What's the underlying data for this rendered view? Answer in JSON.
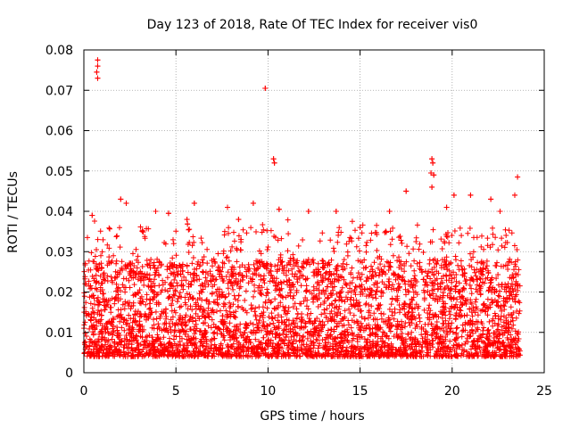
{
  "chart_data": {
    "type": "scatter",
    "title": "Day 123 of 2018, Rate Of TEC Index for receiver vis0",
    "xlabel": "GPS time / hours",
    "ylabel": "ROTI / TECUs",
    "xlim": [
      0,
      25
    ],
    "ylim": [
      0,
      0.08
    ],
    "x_ticks": [
      0,
      5,
      10,
      15,
      20,
      25
    ],
    "y_ticks": [
      0,
      0.01,
      0.02,
      0.03,
      0.04,
      0.05,
      0.06,
      0.07,
      0.08
    ],
    "x_tick_labels": [
      "0",
      "5",
      "10",
      "15",
      "20",
      "25"
    ],
    "y_tick_labels": [
      "0",
      "0.01",
      "0.02",
      "0.03",
      "0.04",
      "0.05",
      "0.06",
      "0.07",
      "0.08"
    ],
    "grid": true,
    "marker": "+",
    "marker_color": "#ff0000",
    "series": [
      {
        "name": "ROTI",
        "x_range": [
          0,
          23.7
        ],
        "typical_range": [
          0.004,
          0.025
        ],
        "points_description": "dense cloud of samples across the day",
        "outliers": [
          {
            "x": 0.75,
            "y": 0.0775
          },
          {
            "x": 0.75,
            "y": 0.076
          },
          {
            "x": 0.7,
            "y": 0.0745
          },
          {
            "x": 0.75,
            "y": 0.073
          },
          {
            "x": 9.85,
            "y": 0.0705
          },
          {
            "x": 10.3,
            "y": 0.053
          },
          {
            "x": 10.35,
            "y": 0.052
          },
          {
            "x": 18.9,
            "y": 0.053
          },
          {
            "x": 18.95,
            "y": 0.052
          },
          {
            "x": 18.85,
            "y": 0.0495
          },
          {
            "x": 19.0,
            "y": 0.049
          },
          {
            "x": 18.9,
            "y": 0.046
          },
          {
            "x": 23.55,
            "y": 0.0485
          },
          {
            "x": 17.5,
            "y": 0.045
          },
          {
            "x": 2.0,
            "y": 0.043
          },
          {
            "x": 2.3,
            "y": 0.042
          },
          {
            "x": 21.0,
            "y": 0.044
          },
          {
            "x": 20.1,
            "y": 0.044
          },
          {
            "x": 23.4,
            "y": 0.044
          },
          {
            "x": 22.1,
            "y": 0.043
          },
          {
            "x": 6.0,
            "y": 0.042
          },
          {
            "x": 9.2,
            "y": 0.042
          },
          {
            "x": 3.9,
            "y": 0.04
          },
          {
            "x": 4.6,
            "y": 0.0395
          },
          {
            "x": 7.8,
            "y": 0.041
          },
          {
            "x": 10.6,
            "y": 0.0405
          },
          {
            "x": 12.2,
            "y": 0.04
          },
          {
            "x": 13.7,
            "y": 0.04
          },
          {
            "x": 0.45,
            "y": 0.039
          },
          {
            "x": 5.6,
            "y": 0.038
          },
          {
            "x": 16.6,
            "y": 0.04
          },
          {
            "x": 19.7,
            "y": 0.041
          },
          {
            "x": 22.6,
            "y": 0.04
          },
          {
            "x": 15.0,
            "y": 0.036
          },
          {
            "x": 8.4,
            "y": 0.038
          }
        ]
      }
    ]
  }
}
